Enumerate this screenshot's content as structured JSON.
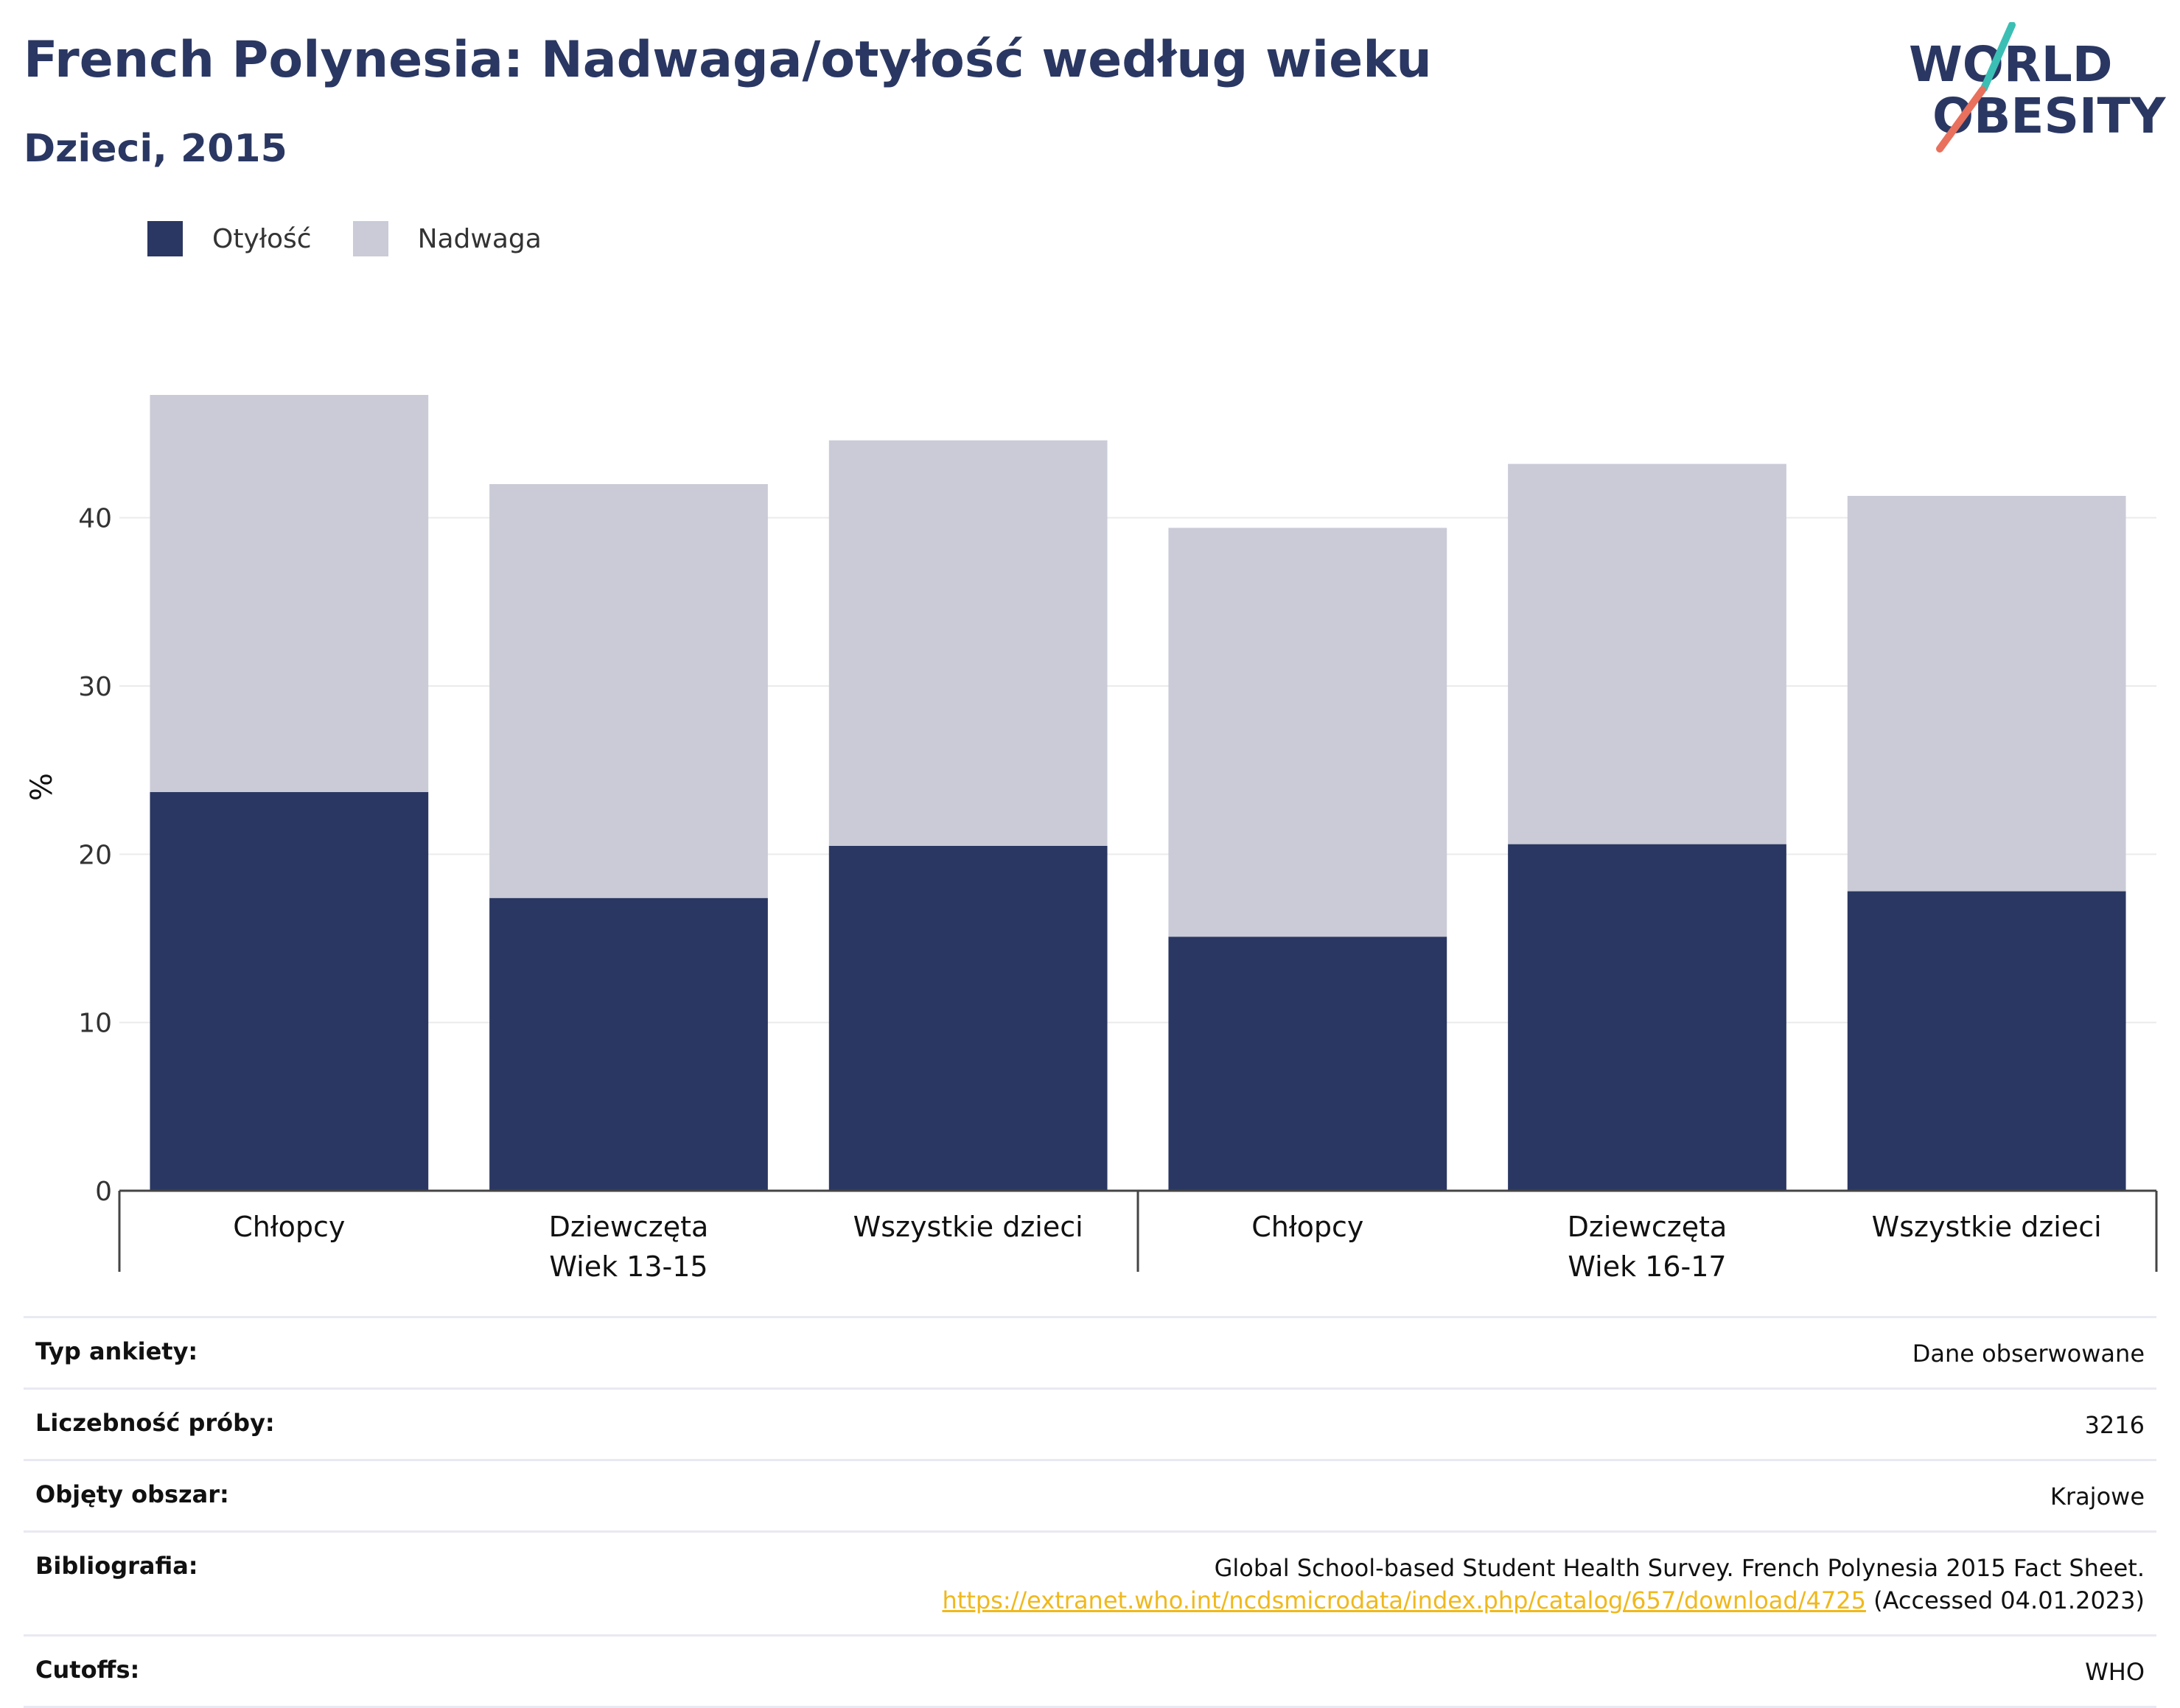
{
  "header": {
    "title": "French Polynesia: Nadwaga/otyłość według wieku",
    "subtitle": "Dzieci, 2015"
  },
  "logo": {
    "line1": "WORLD",
    "line2": "OBESITY",
    "accent_teal": "#3bbfb4",
    "accent_coral": "#e8705c"
  },
  "legend": [
    {
      "label": "Otyłość",
      "color": "#2a3762"
    },
    {
      "label": "Nadwaga",
      "color": "#cacbd7"
    }
  ],
  "chart_data": {
    "type": "bar",
    "stacked": true,
    "ylabel": "%",
    "ylim": [
      0,
      48
    ],
    "yticks": [
      0,
      10,
      20,
      30,
      40
    ],
    "grid": true,
    "legend_position": "top-left",
    "categories": [
      "Chłopcy",
      "Dziewczęta",
      "Wszystkie dzieci",
      "Chłopcy",
      "Dziewczęta",
      "Wszystkie dzieci"
    ],
    "groups": [
      {
        "label": "Wiek 13-15",
        "categories": [
          0,
          1,
          2
        ]
      },
      {
        "label": "Wiek 16-17",
        "categories": [
          3,
          4,
          5
        ]
      }
    ],
    "series": [
      {
        "name": "Otyłość",
        "color": "#2a3762",
        "values": [
          23.7,
          17.4,
          20.5,
          15.1,
          20.6,
          17.8
        ]
      },
      {
        "name": "Nadwaga",
        "color": "#cacbd7",
        "values": [
          23.6,
          24.6,
          24.1,
          24.3,
          22.6,
          23.5
        ]
      }
    ]
  },
  "info": {
    "survey_type": {
      "label": "Typ ankiety:",
      "value": "Dane obserwowane"
    },
    "sample_size": {
      "label": "Liczebność próby:",
      "value": "3216"
    },
    "coverage": {
      "label": "Objęty obszar:",
      "value": "Krajowe"
    },
    "bibliography": {
      "label": "Bibliografia:",
      "text": "Global School-based Student Health Survey. French Polynesia 2015 Fact Sheet.",
      "url": "https://extranet.who.int/ncdsmicrodata/index.php/catalog/657/download/4725",
      "accessed": "(Accessed 04.01.2023)"
    },
    "cutoffs": {
      "label": "Cutoffs:",
      "value": "WHO"
    }
  }
}
